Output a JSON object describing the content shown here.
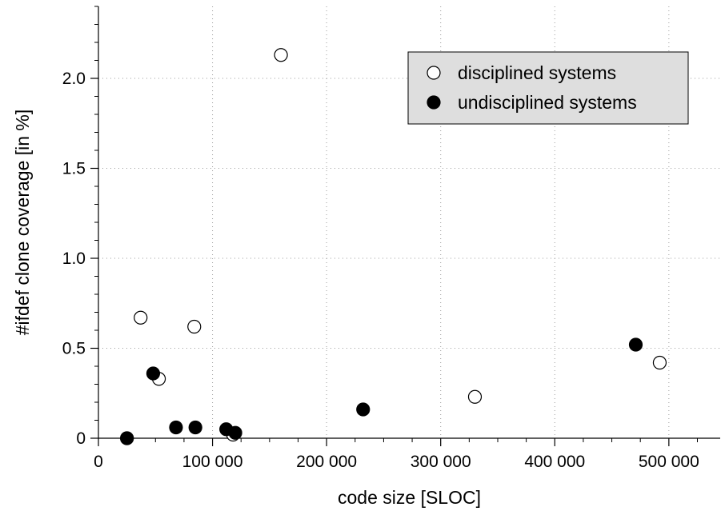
{
  "chart_data": {
    "type": "scatter",
    "xlabel": "code size [SLOC]",
    "ylabel": "#ifdef clone coverage [in %]",
    "xlim": [
      0,
      545000
    ],
    "ylim": [
      0,
      2.4
    ],
    "x_ticks": [
      0,
      100000,
      200000,
      300000,
      400000,
      500000
    ],
    "x_tick_labels": [
      "0",
      "100 000",
      "200 000",
      "300 000",
      "400 000",
      "500 000"
    ],
    "x_minor_step": 25000,
    "y_ticks": [
      0,
      0.5,
      1.0,
      1.5,
      2.0
    ],
    "y_tick_labels": [
      "0",
      "0.5",
      "1.0",
      "1.5",
      "2.0"
    ],
    "y_minor_step": 0.1,
    "grid": true,
    "legend_position": "top-right",
    "series": [
      {
        "name": "disciplined systems",
        "marker": "open-circle",
        "color": "#000000",
        "points": [
          {
            "x": 25000,
            "y": 0.0
          },
          {
            "x": 37000,
            "y": 0.67
          },
          {
            "x": 53000,
            "y": 0.33
          },
          {
            "x": 84000,
            "y": 0.62
          },
          {
            "x": 118000,
            "y": 0.02
          },
          {
            "x": 160000,
            "y": 2.13
          },
          {
            "x": 330000,
            "y": 0.23
          },
          {
            "x": 492000,
            "y": 0.42
          }
        ]
      },
      {
        "name": "undisciplined systems",
        "marker": "filled-circle",
        "color": "#000000",
        "points": [
          {
            "x": 25000,
            "y": 0.0
          },
          {
            "x": 48000,
            "y": 0.36
          },
          {
            "x": 68000,
            "y": 0.06
          },
          {
            "x": 85000,
            "y": 0.06
          },
          {
            "x": 112000,
            "y": 0.05
          },
          {
            "x": 120000,
            "y": 0.03
          },
          {
            "x": 232000,
            "y": 0.16
          },
          {
            "x": 471000,
            "y": 0.52
          }
        ]
      }
    ]
  }
}
